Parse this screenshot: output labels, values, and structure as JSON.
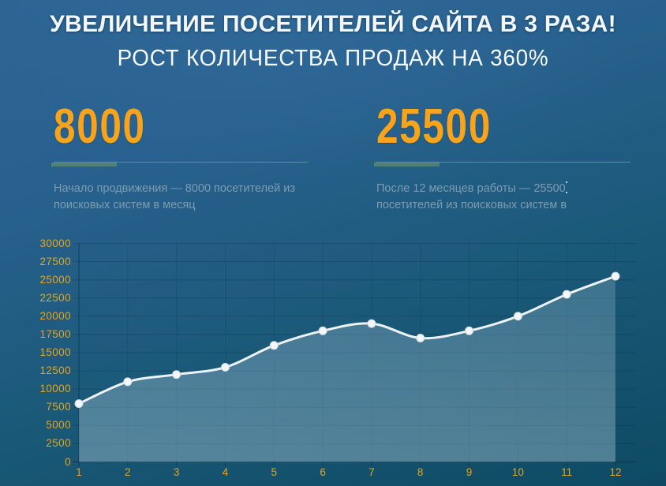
{
  "header": {
    "title": "УВЕЛИЧЕНИЕ ПОСЕТИТЕЛЕЙ САЙТА В 3 РАЗА!",
    "subtitle": "РОСТ КОЛИЧЕСТВА ПРОДАЖ НА 360%"
  },
  "stats": [
    {
      "value": "8000",
      "desc_line1": "Начало продвижения — 8000 посетителей из",
      "desc_line2": "поисковых систем в месяц"
    },
    {
      "value": "25500",
      "desc_line1": "После 12 месяцев работы — 25500",
      "desc_line2": "посетителей из поисковых систем в"
    }
  ],
  "chart_data": {
    "type": "line",
    "x": [
      1,
      2,
      3,
      4,
      5,
      6,
      7,
      8,
      9,
      10,
      11,
      12
    ],
    "xlabels": [
      "1",
      "2",
      "3",
      "4",
      "5",
      "6",
      "7",
      "8",
      "9",
      "10",
      "11",
      "12"
    ],
    "values": [
      8000,
      11000,
      12000,
      13000,
      16000,
      18000,
      19000,
      17000,
      18000,
      20000,
      23000,
      25500
    ],
    "ylim": [
      0,
      30000
    ],
    "ytick_step": 2500,
    "grid": true,
    "area_fill": true,
    "marker": "circle",
    "line_color": "#edf2f5",
    "marker_color": "#f4f7f9",
    "axis_label_color": "#e5a51d"
  },
  "colors": {
    "background_top": "#2c6494",
    "background_bottom": "#0d4a62",
    "accent_orange": "#f7a41c",
    "divider_gold": "#a87c28",
    "divider_green": "#5f8c73",
    "description_text": "#7d9cb0",
    "title_text": "#f2f7fc"
  }
}
